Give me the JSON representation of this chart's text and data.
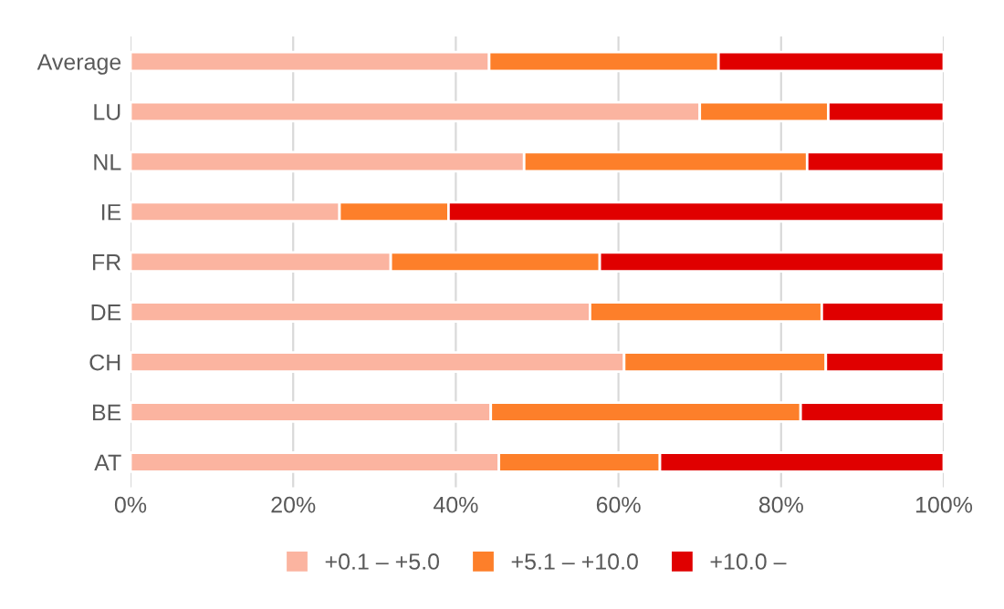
{
  "chart_data": {
    "type": "bar",
    "orientation": "horizontal",
    "stacked": true,
    "categories": [
      "Average",
      "LU",
      "NL",
      "IE",
      "FR",
      "DE",
      "CH",
      "BE",
      "AT"
    ],
    "series": [
      {
        "name": "+0.1 – +5.0",
        "color": "#fbb4a0",
        "values": [
          44.1,
          70.0,
          48.4,
          25.7,
          32.0,
          56.5,
          60.7,
          44.3,
          45.3
        ]
      },
      {
        "name": "+5.1 – +10.0",
        "color": "#fd7f2a",
        "values": [
          28.2,
          15.8,
          34.8,
          13.4,
          25.7,
          28.5,
          24.8,
          38.1,
          19.8
        ]
      },
      {
        "name": "+10.0 –",
        "color": "#e00000",
        "values": [
          27.7,
          14.2,
          16.8,
          60.9,
          42.3,
          15.0,
          14.5,
          17.6,
          34.9
        ]
      }
    ],
    "xlim": [
      0,
      100
    ],
    "xticks": [
      {
        "value": 0,
        "label": "0%"
      },
      {
        "value": 20,
        "label": "20%"
      },
      {
        "value": 40,
        "label": "40%"
      },
      {
        "value": 60,
        "label": "60%"
      },
      {
        "value": 80,
        "label": "80%"
      },
      {
        "value": 100,
        "label": "100%"
      }
    ],
    "grid": "x",
    "legend": "bottom"
  }
}
